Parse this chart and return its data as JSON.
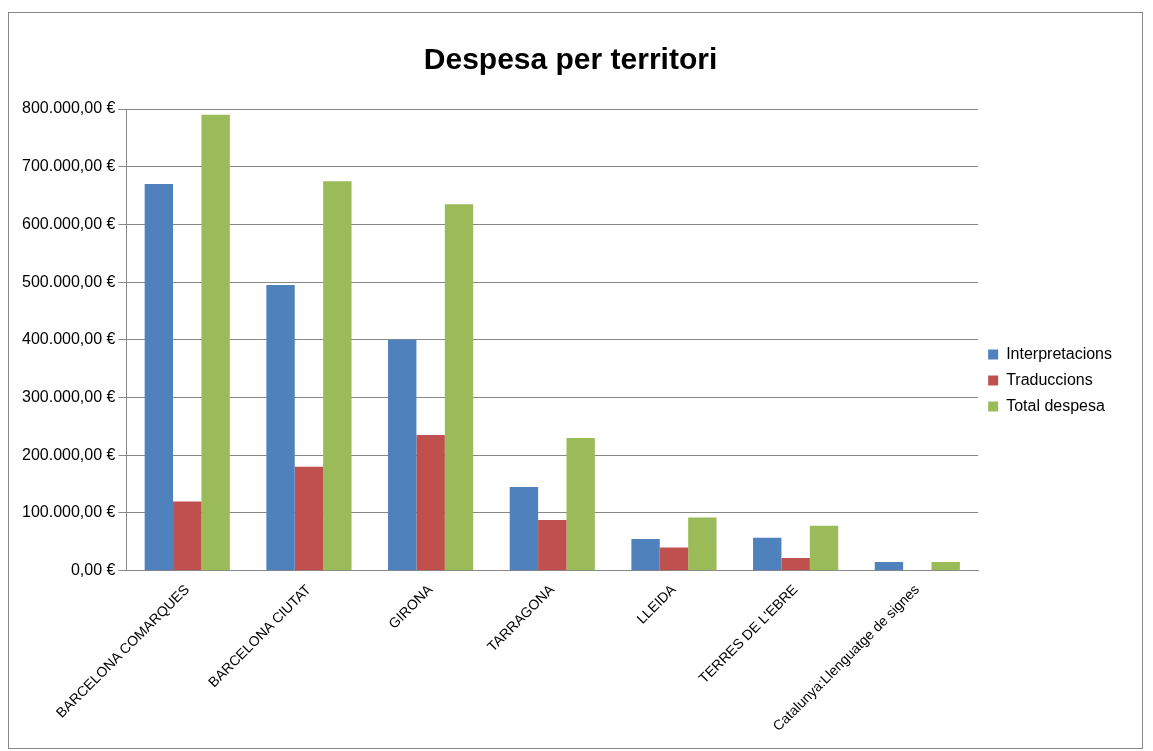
{
  "chart_data": {
    "type": "bar",
    "title": "Despesa per territori",
    "categories": [
      "BARCELONA COMARQUES",
      "BARCELONA CIUTAT",
      "GIRONA",
      "TARRAGONA",
      "LLEIDA",
      "TERRES DE L'EBRE",
      "Catalunya:Llenguatge de signes"
    ],
    "series": [
      {
        "name": "Interpretacions",
        "color": "#4f81bd",
        "values": [
          670000,
          495000,
          400000,
          145000,
          55000,
          57000,
          15000
        ]
      },
      {
        "name": "Traduccions",
        "color": "#c0504d",
        "values": [
          120000,
          180000,
          235000,
          88000,
          40000,
          22000,
          0
        ]
      },
      {
        "name": "Total despesa",
        "color": "#9bbb59",
        "values": [
          790000,
          675000,
          635000,
          230000,
          92000,
          78000,
          15000
        ]
      }
    ],
    "ylim": [
      0,
      800000
    ],
    "yticks": [
      {
        "value": 0,
        "label": "0,00 €"
      },
      {
        "value": 100000,
        "label": "100.000,00 €"
      },
      {
        "value": 200000,
        "label": "200.000,00 €"
      },
      {
        "value": 300000,
        "label": "300.000,00 €"
      },
      {
        "value": 400000,
        "label": "400.000,00 €"
      },
      {
        "value": 500000,
        "label": "500.000,00 €"
      },
      {
        "value": 600000,
        "label": "600.000,00 €"
      },
      {
        "value": 700000,
        "label": "700.000,00 €"
      },
      {
        "value": 800000,
        "label": "800.000,00 €"
      }
    ],
    "grid": "y",
    "legend": "right"
  }
}
